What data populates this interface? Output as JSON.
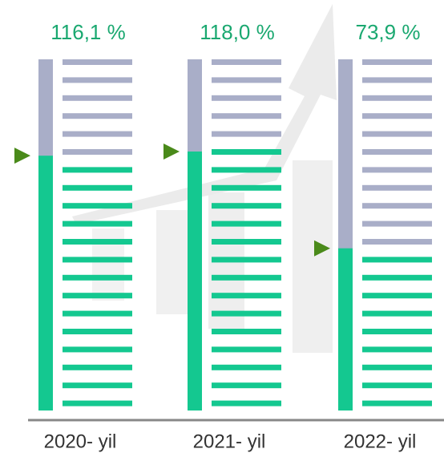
{
  "chart_data": {
    "type": "bar",
    "categories": [
      "2020- yil",
      "2021- yil",
      "2022- yil"
    ],
    "values": [
      116.1,
      118.0,
      73.9
    ],
    "value_labels": [
      "116,1 %",
      "118,0 %",
      "73,9 %"
    ],
    "color": "#14c890",
    "empty_color": "#a9aec8",
    "label_color": "#1aa870",
    "ylim": [
      0,
      160
    ]
  }
}
